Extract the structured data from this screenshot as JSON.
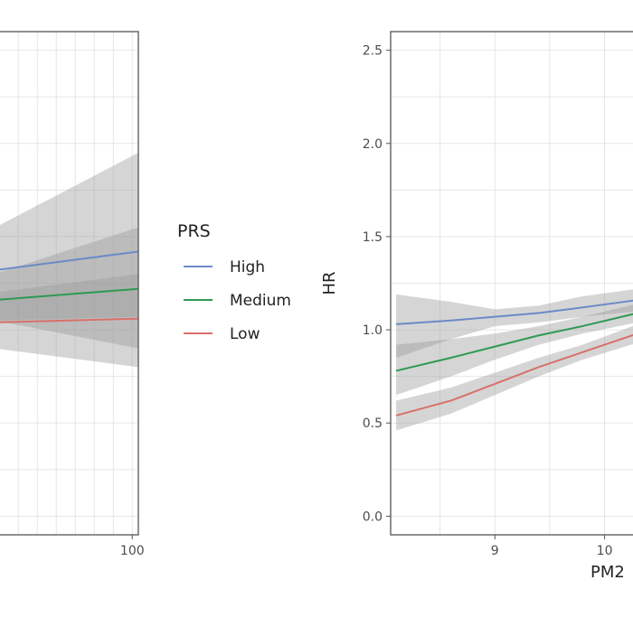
{
  "chart_data": [
    {
      "type": "line",
      "title": "",
      "xlabel": "",
      "ylabel": "",
      "x_ticks": [
        100
      ],
      "xlim": [
        55,
        102
      ],
      "ylim": [
        -0.1,
        2.6
      ],
      "grid": true,
      "series": [
        {
          "name": "High",
          "color": "#6b8bc7",
          "x": [
            55,
            102
          ],
          "y": [
            1.32,
            1.42
          ],
          "band_lo": [
            1.05,
            0.9
          ],
          "band_hi": [
            1.55,
            1.95
          ]
        },
        {
          "name": "Medium",
          "color": "#2e9a52",
          "x": [
            55,
            102
          ],
          "y": [
            1.16,
            1.22
          ],
          "band_lo": [
            1.05,
            1.07
          ],
          "band_hi": [
            1.3,
            1.55
          ]
        },
        {
          "name": "Low",
          "color": "#d9706a",
          "x": [
            55,
            102
          ],
          "y": [
            1.04,
            1.06
          ],
          "band_lo": [
            0.9,
            0.8
          ],
          "band_hi": [
            1.2,
            1.3
          ]
        }
      ]
    },
    {
      "type": "line",
      "title": "",
      "xlabel": "PM2",
      "ylabel": "HR",
      "x_ticks": [
        9,
        10
      ],
      "y_ticks": [
        0.0,
        0.5,
        1.0,
        1.5,
        2.0,
        2.5
      ],
      "y_tick_labels": [
        "0.0",
        "0.5",
        "1.0",
        "1.5",
        "2.0",
        "2.5"
      ],
      "x_tick_labels": [
        "9",
        "10"
      ],
      "xlim": [
        8.05,
        10.3
      ],
      "ylim": [
        -0.1,
        2.6
      ],
      "grid": true,
      "series": [
        {
          "name": "High",
          "color": "#6b8bc7",
          "x": [
            8.1,
            8.6,
            9.0,
            9.4,
            9.8,
            10.3
          ],
          "y": [
            1.03,
            1.05,
            1.07,
            1.09,
            1.12,
            1.16
          ],
          "band_lo": [
            0.85,
            0.95,
            1.02,
            1.04,
            1.07,
            1.1
          ],
          "band_hi": [
            1.19,
            1.15,
            1.11,
            1.13,
            1.18,
            1.22
          ]
        },
        {
          "name": "Medium",
          "color": "#2e9a52",
          "x": [
            8.1,
            8.6,
            9.0,
            9.4,
            9.8,
            10.3
          ],
          "y": [
            0.78,
            0.85,
            0.91,
            0.97,
            1.02,
            1.09
          ],
          "band_lo": [
            0.65,
            0.75,
            0.84,
            0.92,
            0.98,
            1.04
          ],
          "band_hi": [
            0.92,
            0.95,
            0.98,
            1.02,
            1.07,
            1.14
          ]
        },
        {
          "name": "Low",
          "color": "#d9706a",
          "x": [
            8.1,
            8.6,
            9.0,
            9.4,
            9.8,
            10.3
          ],
          "y": [
            0.54,
            0.62,
            0.71,
            0.8,
            0.88,
            0.98
          ],
          "band_lo": [
            0.46,
            0.55,
            0.65,
            0.75,
            0.84,
            0.93
          ],
          "band_hi": [
            0.62,
            0.69,
            0.77,
            0.85,
            0.92,
            1.03
          ]
        }
      ]
    }
  ],
  "legend": {
    "title": "PRS",
    "placement": "between-panels",
    "items": [
      {
        "label": "High",
        "color": "#6b8bc7"
      },
      {
        "label": "Medium",
        "color": "#2e9a52"
      },
      {
        "label": "Low",
        "color": "#d9706a"
      }
    ]
  },
  "colors": {
    "panel_border": "#555555",
    "grid": "#e6e6e6",
    "band": "#9a9a9a",
    "tick_text": "#4d4d4d"
  }
}
